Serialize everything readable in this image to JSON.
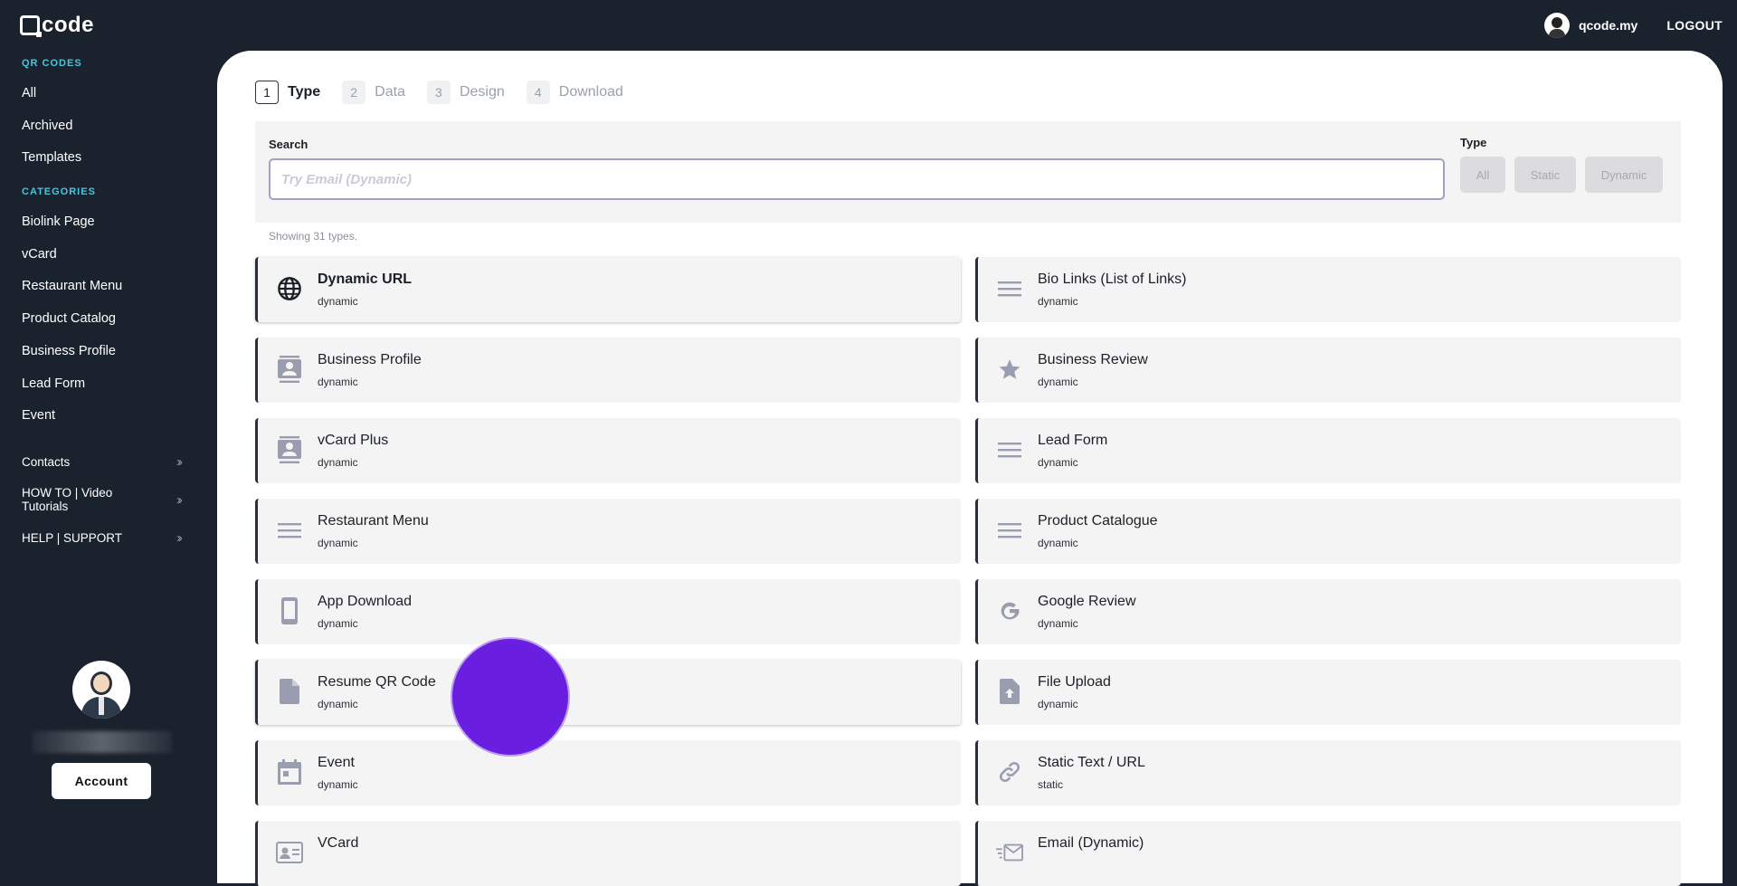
{
  "header": {
    "logo": "code",
    "user_name": "qcode.my",
    "logout_label": "LOGOUT"
  },
  "sidebar": {
    "qr_section": "QR CODES",
    "qr_items": [
      "All",
      "Archived",
      "Templates"
    ],
    "categories_section": "CATEGORIES",
    "category_items": [
      "Biolink Page",
      "vCard",
      "Restaurant Menu",
      "Product Catalog",
      "Business Profile",
      "Lead Form",
      "Event"
    ],
    "expandables": [
      "Contacts",
      "HOW TO | Video Tutorials",
      "HELP | SUPPORT"
    ],
    "account_label": "Account"
  },
  "steps": [
    {
      "num": "1",
      "label": "Type"
    },
    {
      "num": "2",
      "label": "Data"
    },
    {
      "num": "3",
      "label": "Design"
    },
    {
      "num": "4",
      "label": "Download"
    }
  ],
  "search": {
    "label": "Search",
    "placeholder": "Try Email (Dynamic)",
    "value": ""
  },
  "type_filter": {
    "label": "Type",
    "options": [
      "All",
      "Static",
      "Dynamic"
    ]
  },
  "showing_text": "Showing 31 types.",
  "cards": [
    {
      "title": "Dynamic URL",
      "sub": "dynamic",
      "icon": "globe-icon"
    },
    {
      "title": "Bio Links (List of Links)",
      "sub": "dynamic",
      "icon": "lines-icon"
    },
    {
      "title": "Business Profile",
      "sub": "dynamic",
      "icon": "contact-icon"
    },
    {
      "title": "Business Review",
      "sub": "dynamic",
      "icon": "star-icon"
    },
    {
      "title": "vCard Plus",
      "sub": "dynamic",
      "icon": "contact-icon"
    },
    {
      "title": "Lead Form",
      "sub": "dynamic",
      "icon": "lines-icon"
    },
    {
      "title": "Restaurant Menu",
      "sub": "dynamic",
      "icon": "lines-icon"
    },
    {
      "title": "Product Catalogue",
      "sub": "dynamic",
      "icon": "lines-icon"
    },
    {
      "title": "App Download",
      "sub": "dynamic",
      "icon": "phone-icon"
    },
    {
      "title": "Google Review",
      "sub": "dynamic",
      "icon": "google-icon"
    },
    {
      "title": "Resume QR Code",
      "sub": "dynamic",
      "icon": "file-icon"
    },
    {
      "title": "File Upload",
      "sub": "dynamic",
      "icon": "file-upload-icon"
    },
    {
      "title": "Event",
      "sub": "dynamic",
      "icon": "calendar-icon"
    },
    {
      "title": "Static Text / URL",
      "sub": "static",
      "icon": "link-icon"
    },
    {
      "title": "VCard",
      "sub": "",
      "icon": "id-card-icon"
    },
    {
      "title": "Email (Dynamic)",
      "sub": "",
      "icon": "email-fast-icon"
    }
  ]
}
